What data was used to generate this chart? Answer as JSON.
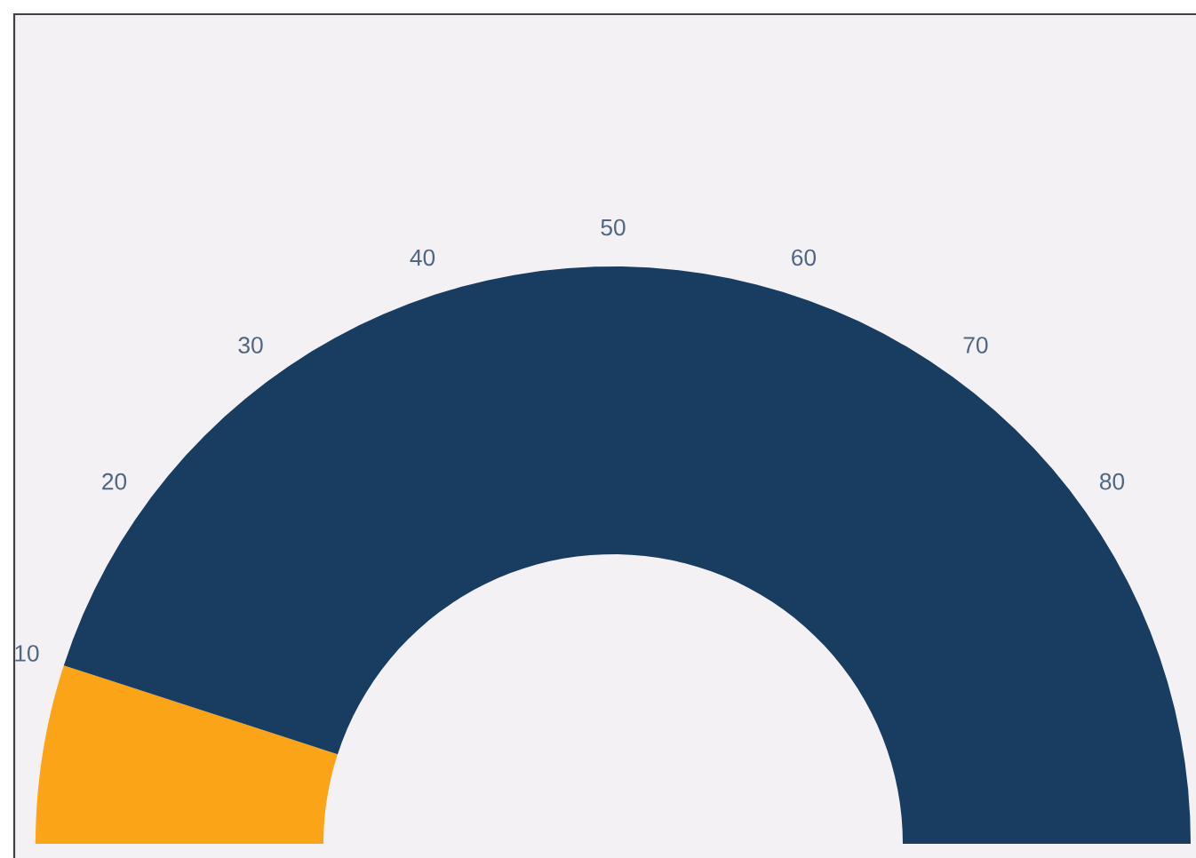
{
  "chart_data": {
    "type": "donut",
    "categories": [
      null,
      null
    ],
    "values": [
      10,
      90
    ],
    "colors": [
      "#fba418",
      "#193d61"
    ],
    "annotations": [
      "10",
      "20",
      "30",
      "40",
      "50",
      "60",
      "70",
      "80"
    ]
  }
}
